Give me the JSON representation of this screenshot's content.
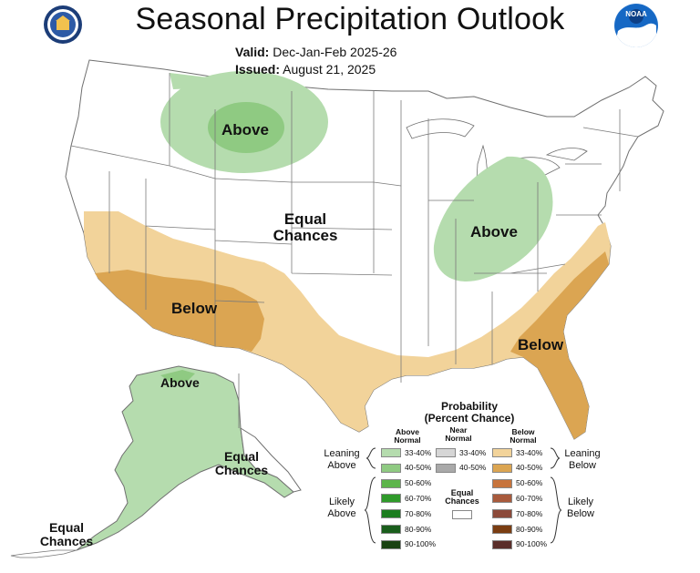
{
  "header": {
    "title": "Seasonal Precipitation Outlook",
    "valid_label": "Valid:",
    "valid_value": "Dec-Jan-Feb 2025-26",
    "issued_label": "Issued:",
    "issued_value": "August 21, 2025",
    "noaa_text": "NOAA"
  },
  "map_labels": {
    "above_north": "Above",
    "equal_center_1": "Equal",
    "equal_center_2": "Chances",
    "above_ohio": "Above",
    "below_sw": "Below",
    "below_se": "Below",
    "above_alaska": "Above",
    "equal_alaska_1": "Equal",
    "equal_alaska_2": "Chances",
    "equal_aleut_1": "Equal",
    "equal_aleut_2": "Chances"
  },
  "colors": {
    "above_33_40": "#b5dcae",
    "above_40_50": "#8fca82",
    "below_33_40": "#f2d39a",
    "below_40_50": "#dba552",
    "near_33_40": "#d6d6d6",
    "near_40_50": "#a9a9a9"
  },
  "legend": {
    "title_1": "Probability",
    "title_2": "(Percent Chance)",
    "above_head_1": "Above",
    "above_head_2": "Normal",
    "near_head_1": "Near",
    "near_head_2": "Normal",
    "below_head_1": "Below",
    "below_head_2": "Normal",
    "leaning_above_1": "Leaning",
    "leaning_above_2": "Above",
    "leaning_below_1": "Leaning",
    "leaning_below_2": "Below",
    "likely_above_1": "Likely",
    "likely_above_2": "Above",
    "likely_below_1": "Likely",
    "likely_below_2": "Below",
    "equal_1": "Equal",
    "equal_2": "Chances",
    "above": [
      {
        "range": "33-40%",
        "color": "#b5dcae"
      },
      {
        "range": "40-50%",
        "color": "#8fca82"
      },
      {
        "range": "50-60%",
        "color": "#5cb54a"
      },
      {
        "range": "60-70%",
        "color": "#2f9a2a"
      },
      {
        "range": "70-80%",
        "color": "#1b7d1e"
      },
      {
        "range": "80-90%",
        "color": "#1a5e1c"
      },
      {
        "range": "90-100%",
        "color": "#1a4212"
      }
    ],
    "near": [
      {
        "range": "33-40%",
        "color": "#d6d6d6"
      },
      {
        "range": "40-50%",
        "color": "#a9a9a9"
      }
    ],
    "below": [
      {
        "range": "33-40%",
        "color": "#f2d39a"
      },
      {
        "range": "40-50%",
        "color": "#dba552"
      },
      {
        "range": "50-60%",
        "color": "#c7743c"
      },
      {
        "range": "60-70%",
        "color": "#a85a3c"
      },
      {
        "range": "70-80%",
        "color": "#8c4a3a"
      },
      {
        "range": "80-90%",
        "color": "#7a3d12"
      },
      {
        "range": "90-100%",
        "color": "#5a2e2a"
      }
    ]
  }
}
